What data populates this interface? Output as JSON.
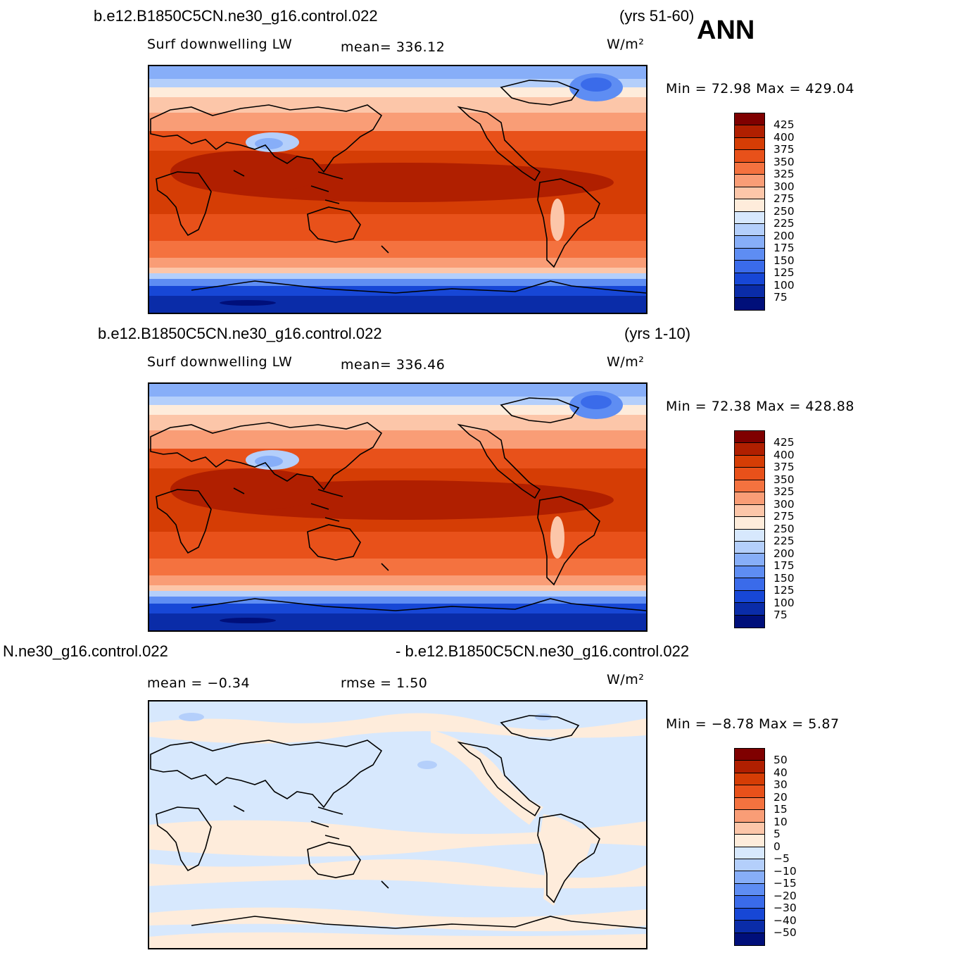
{
  "header": {
    "ann_label": "ANN"
  },
  "panels": [
    {
      "case_title": "b.e12.B1850C5CN.ne30_g16.control.022",
      "years": "(yrs 51-60)",
      "variable": "Surf downwelling LW",
      "stat1": "mean= 336.12",
      "stat2": "",
      "units": "W/m²",
      "minmax": "Min =   72.98 Max = 429.04",
      "cbar_ticks": [
        "425",
        "400",
        "375",
        "350",
        "325",
        "300",
        "275",
        "250",
        "225",
        "200",
        "175",
        "150",
        "125",
        "100",
        "75"
      ]
    },
    {
      "case_title": "b.e12.B1850C5CN.ne30_g16.control.022",
      "years": "(yrs 1-10)",
      "variable": "Surf downwelling LW",
      "stat1": "mean= 336.46",
      "stat2": "",
      "units": "W/m²",
      "minmax": "Min =   72.38 Max = 428.88",
      "cbar_ticks": [
        "425",
        "400",
        "375",
        "350",
        "325",
        "300",
        "275",
        "250",
        "225",
        "200",
        "175",
        "150",
        "125",
        "100",
        "75"
      ]
    },
    {
      "case_title": "N.ne30_g16.control.022",
      "years": "- b.e12.B1850C5CN.ne30_g16.control.022",
      "variable": "",
      "stat1": "mean =   −0.34",
      "stat2": "rmse =    1.50",
      "units": "W/m²",
      "minmax": "Min =   −8.78 Max =    5.87",
      "cbar_ticks": [
        "50",
        "40",
        "30",
        "20",
        "15",
        "10",
        "5",
        "0",
        "−5",
        "−10",
        "−15",
        "−20",
        "−30",
        "−40",
        "−50"
      ]
    }
  ],
  "colors": {
    "colorbar": [
      "#7f0000",
      "#b01f00",
      "#d53d05",
      "#e8511a",
      "#f4723f",
      "#f99d76",
      "#fcc6a9",
      "#feecdb",
      "#d7e8fd",
      "#b4cffb",
      "#87aef8",
      "#5e8df3",
      "#3a6bea",
      "#1747d6",
      "#0a2ca8",
      "#000f7a"
    ],
    "ocean_warm": "#c9310a",
    "land_warm": "#e85a2a",
    "diff_neg": "#d7e8fd",
    "diff_pos": "#feecdb"
  }
}
